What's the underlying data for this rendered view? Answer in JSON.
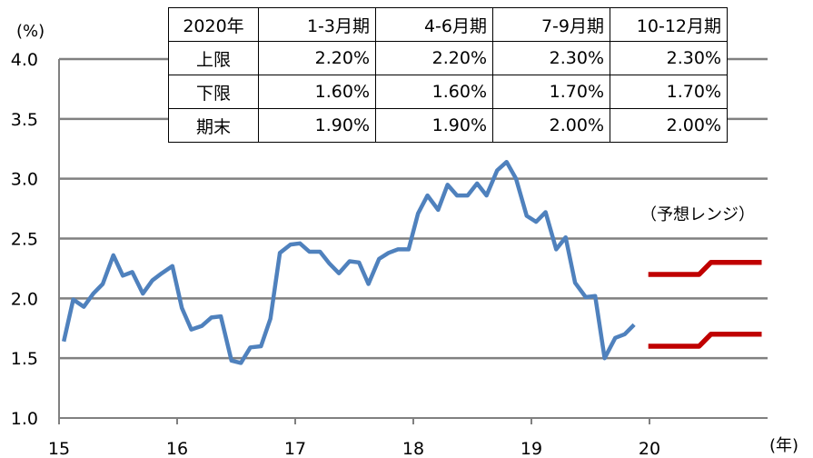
{
  "chart_data": {
    "type": "line",
    "title": "",
    "ylabel": "(%)",
    "xlabel": "(年)",
    "ylim": [
      1.0,
      4.0
    ],
    "yticks": [
      "1.0",
      "1.5",
      "2.0",
      "2.5",
      "3.0",
      "3.5",
      "4.0"
    ],
    "xlim": [
      15,
      20.95
    ],
    "xticks": [
      "15",
      "16",
      "17",
      "18",
      "19",
      "20"
    ],
    "grid": true,
    "colors": {
      "actual": "#4F81BD",
      "forecast": "#C00000",
      "grid": "#808080"
    },
    "series": [
      {
        "x": [
          15.04,
          15.12,
          15.21,
          15.29,
          15.37,
          15.46,
          15.54,
          15.62,
          15.71,
          15.79,
          15.87,
          15.96,
          16.04,
          16.12,
          16.21,
          16.29,
          16.37,
          16.46,
          16.54,
          16.62,
          16.71,
          16.79,
          16.87,
          16.96,
          17.04,
          17.12,
          17.21,
          17.29,
          17.37,
          17.46,
          17.54,
          17.62,
          17.71,
          17.79,
          17.87,
          17.96,
          18.04,
          18.12,
          18.21,
          18.29,
          18.37,
          18.46,
          18.54,
          18.62,
          18.71,
          18.79,
          18.87,
          18.96,
          19.04,
          19.12,
          19.21,
          19.29,
          19.37,
          19.46,
          19.54,
          19.62,
          19.71,
          19.79,
          19.87
        ],
        "values": [
          1.64,
          1.99,
          1.93,
          2.04,
          2.12,
          2.36,
          2.19,
          2.22,
          2.04,
          2.15,
          2.21,
          2.27,
          1.92,
          1.74,
          1.77,
          1.84,
          1.85,
          1.48,
          1.46,
          1.59,
          1.6,
          1.83,
          2.38,
          2.45,
          2.46,
          2.39,
          2.39,
          2.29,
          2.21,
          2.31,
          2.3,
          2.12,
          2.33,
          2.38,
          2.41,
          2.41,
          2.71,
          2.86,
          2.74,
          2.95,
          2.86,
          2.86,
          2.96,
          2.86,
          3.07,
          3.14,
          3.0,
          2.69,
          2.64,
          2.72,
          2.41,
          2.51,
          2.13,
          2.01,
          2.02,
          1.5,
          1.67,
          1.7,
          1.78
        ]
      },
      {
        "x": [
          19.99,
          20.42,
          20.52,
          20.95
        ],
        "values": [
          2.2,
          2.2,
          2.3,
          2.3
        ]
      },
      {
        "x": [
          19.99,
          20.42,
          20.52,
          20.95
        ],
        "values": [
          1.6,
          1.6,
          1.7,
          1.7
        ]
      }
    ],
    "annotations": {
      "range_label": "（予想レンジ）"
    },
    "table": {
      "headers": [
        "2020年",
        "1-3月期",
        "4-6月期",
        "7-9月期",
        "10-12月期"
      ],
      "rows": [
        {
          "label": "上限",
          "values": [
            "2.20%",
            "2.20%",
            "2.30%",
            "2.30%"
          ]
        },
        {
          "label": "下限",
          "values": [
            "1.60%",
            "1.60%",
            "1.70%",
            "1.70%"
          ]
        },
        {
          "label": "期末",
          "values": [
            "1.90%",
            "1.90%",
            "2.00%",
            "2.00%"
          ]
        }
      ]
    }
  }
}
